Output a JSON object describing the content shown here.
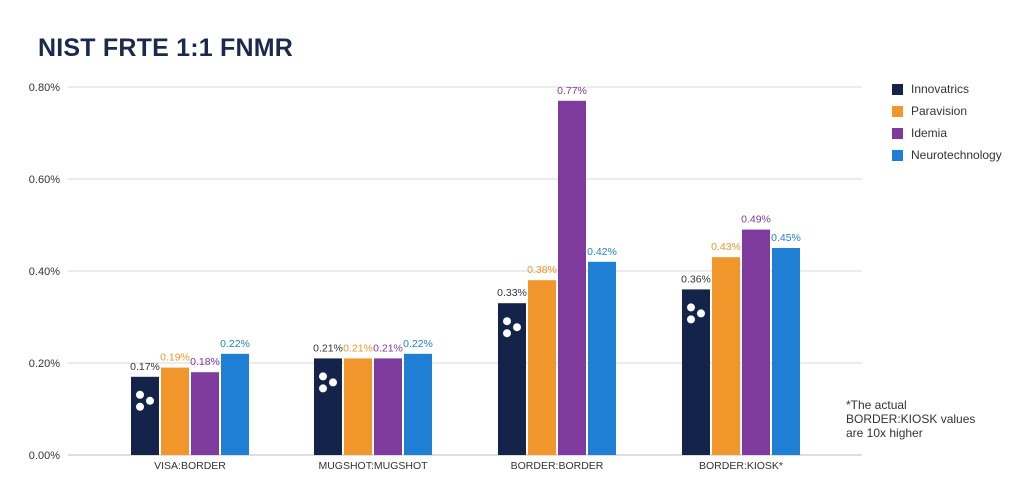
{
  "title": "NIST FRTE 1:1 FNMR",
  "footnote": [
    "*The actual",
    "BORDER:KIOSK values",
    "are 10x higher"
  ],
  "chart_data": {
    "type": "bar",
    "categories": [
      "VISA:BORDER",
      "MUGSHOT:MUGSHOT",
      "BORDER:BORDER",
      "BORDER:KIOSK*"
    ],
    "series": [
      {
        "name": "Innovatrics",
        "color": "#13234a",
        "values": [
          0.17,
          0.21,
          0.33,
          0.36
        ],
        "labels": [
          "0.17%",
          "0.21%",
          "0.33%",
          "0.36%"
        ]
      },
      {
        "name": "Paravision",
        "color": "#f0962a",
        "values": [
          0.19,
          0.21,
          0.38,
          0.43
        ],
        "labels": [
          "0.19%",
          "0.21%",
          "0.38%",
          "0.43%"
        ]
      },
      {
        "name": "Idemia",
        "color": "#7e3a9c",
        "values": [
          0.18,
          0.21,
          0.77,
          0.49
        ],
        "labels": [
          "0.18%",
          "0.21%",
          "0.77%",
          "0.49%"
        ]
      },
      {
        "name": "Neurotechnology",
        "color": "#1f7fd4",
        "values": [
          0.22,
          0.22,
          0.42,
          0.45
        ],
        "labels": [
          "0.22%",
          "0.22%",
          "0.42%",
          "0.45%"
        ]
      }
    ],
    "yticks": [
      "0.00%",
      "0.20%",
      "0.40%",
      "0.60%",
      "0.80%"
    ],
    "ytick_values": [
      0,
      0.2,
      0.4,
      0.6,
      0.8
    ],
    "ylim": [
      0,
      0.8
    ],
    "grid": true,
    "legend_position": "right",
    "label_colors": [
      "#13234a",
      "#f0962a",
      "#7e3a9c",
      "#1f7fd4"
    ],
    "logo_mark_series": "Innovatrics"
  }
}
